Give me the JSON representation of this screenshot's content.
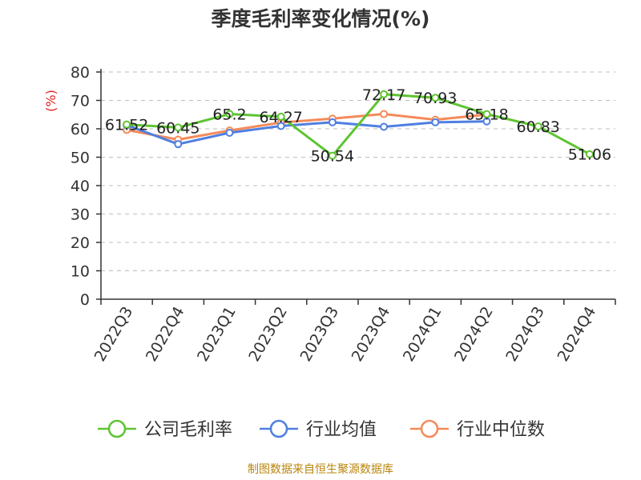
{
  "title": "季度毛利率变化情况(%)",
  "source": "制图数据来自恒生聚源数据库",
  "chart_data": {
    "type": "line",
    "title": "季度毛利率变化情况(%)",
    "xlabel": "",
    "ylabel": "(%)",
    "ylim": [
      0,
      80
    ],
    "yticks": [
      0,
      10,
      20,
      30,
      40,
      50,
      60,
      70,
      80
    ],
    "grid": true,
    "legend_position": "bottom",
    "categories": [
      "2022Q3",
      "2022Q4",
      "2023Q1",
      "2023Q2",
      "2023Q3",
      "2023Q4",
      "2024Q1",
      "2024Q2",
      "2024Q3",
      "2024Q4"
    ],
    "series": [
      {
        "name": "公司毛利率",
        "color": "#5ec431",
        "values": [
          61.52,
          60.45,
          65.2,
          64.27,
          50.54,
          72.17,
          70.93,
          65.18,
          60.83,
          51.06
        ],
        "labels": [
          "61.52",
          "60.45",
          "65.2",
          "64.27",
          "50.54",
          "72.17",
          "70.93",
          "65.18",
          "60.83",
          "51.06"
        ]
      },
      {
        "name": "行业均值",
        "color": "#4f7fe0",
        "values": [
          61.3,
          54.6,
          58.6,
          61.0,
          62.3,
          60.7,
          62.3,
          62.6,
          null,
          null
        ]
      },
      {
        "name": "行业中位数",
        "color": "#f48a59",
        "values": [
          59.6,
          56.2,
          59.4,
          62.2,
          63.6,
          65.2,
          63.2,
          65.0,
          null,
          null
        ]
      }
    ]
  }
}
